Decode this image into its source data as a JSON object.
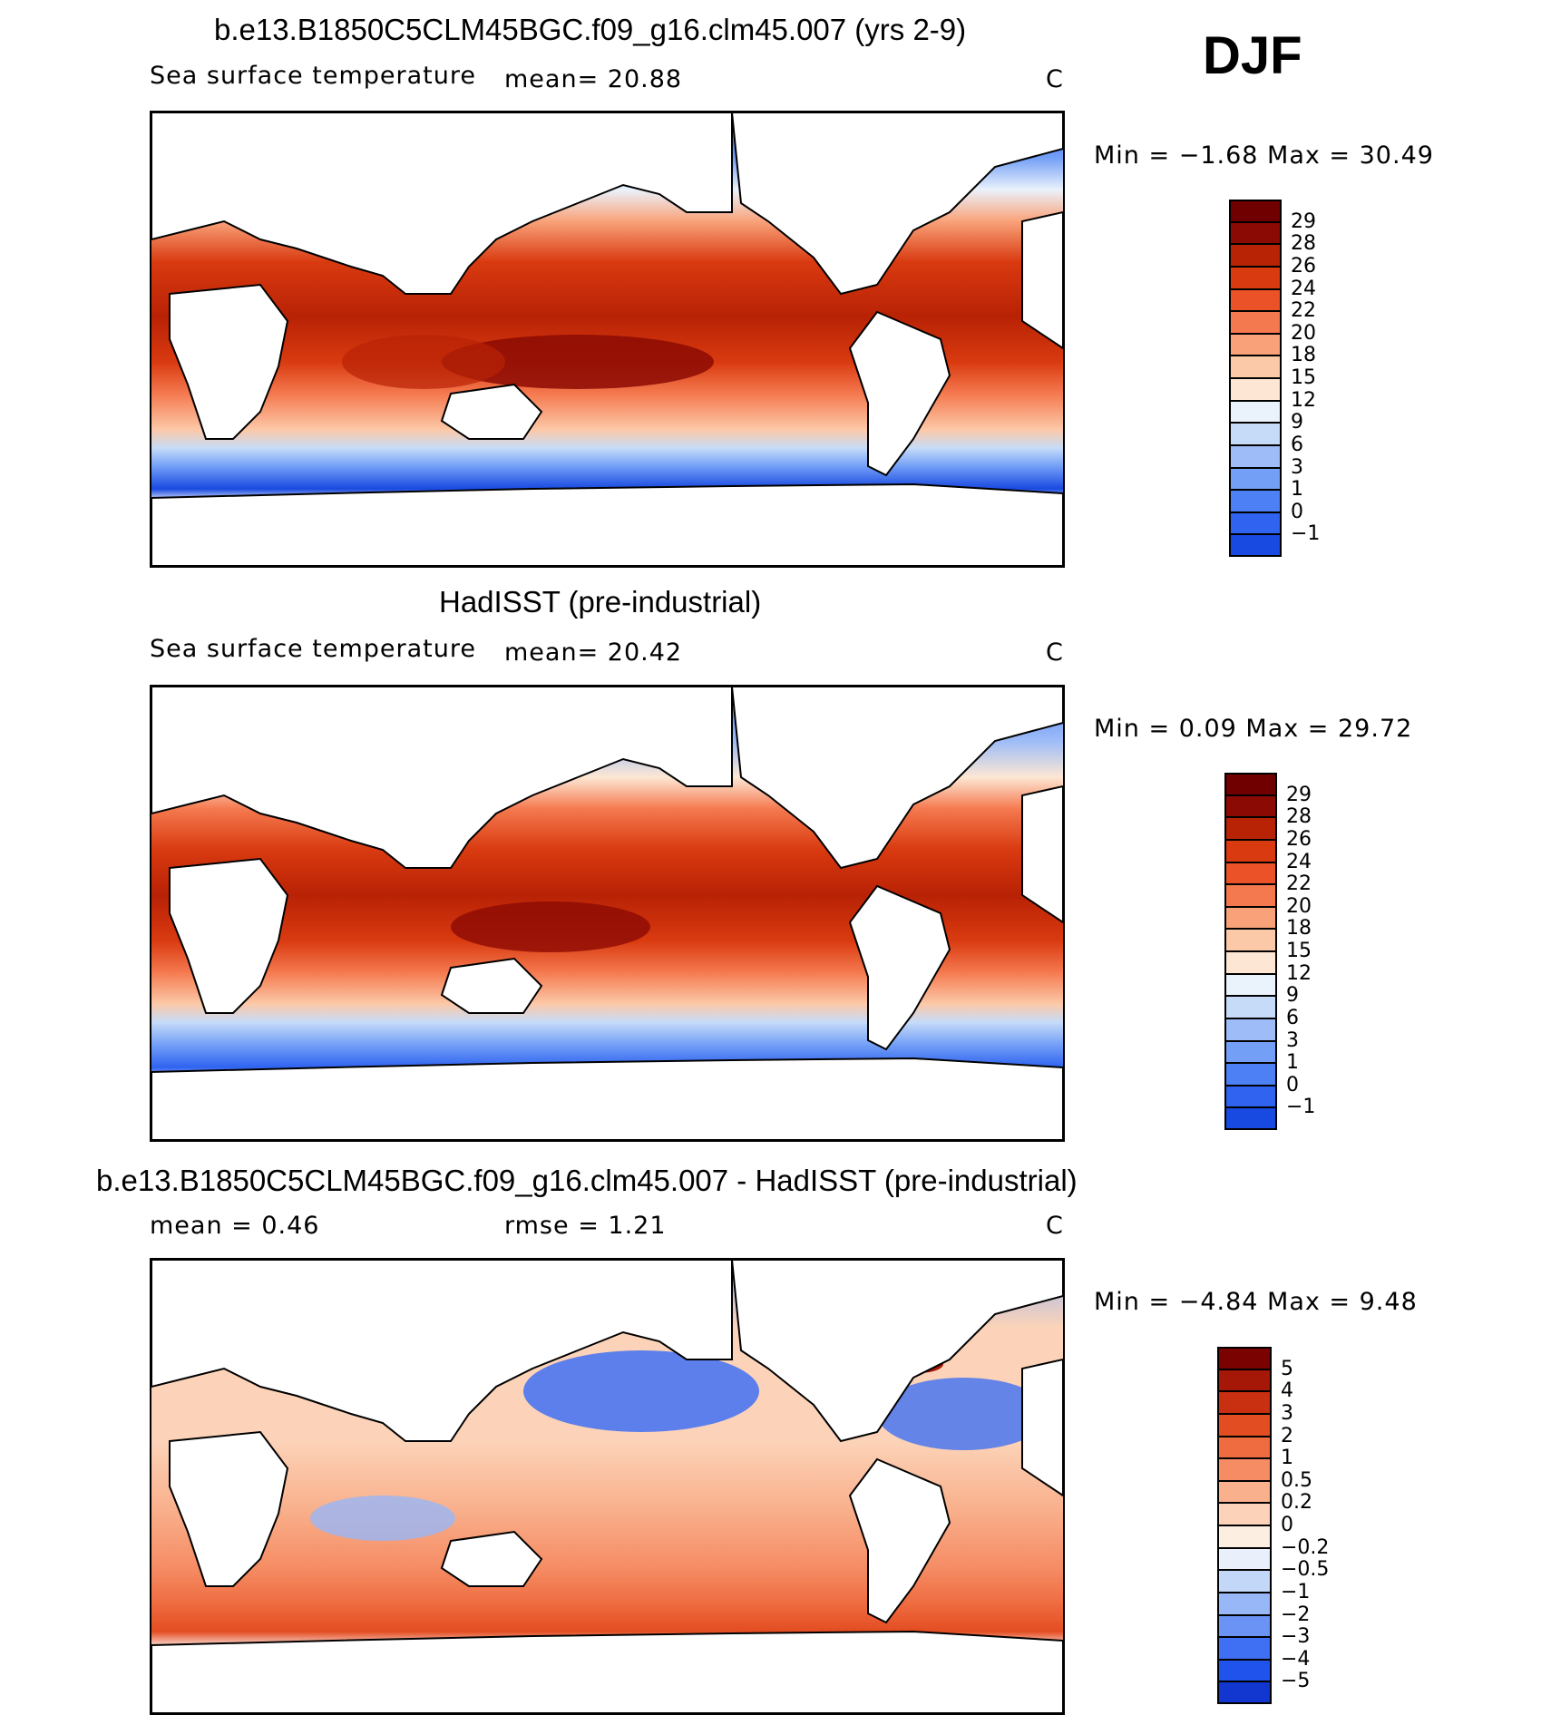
{
  "season": "DJF",
  "colors": {
    "abs_scale": [
      "#08006e",
      "#0d2bb0",
      "#1849e0",
      "#2f63f0",
      "#4d7ff5",
      "#739ff7",
      "#9dbcf8",
      "#c6dbf8",
      "#eaf2fb",
      "#fde7d4",
      "#fcc9a8",
      "#f9a27a",
      "#f5794f",
      "#ec5228",
      "#d93a10",
      "#b82205",
      "#8c0a04",
      "#700000"
    ],
    "diff_scale": [
      "#08006e",
      "#0a1a9e",
      "#1236d0",
      "#1f53ec",
      "#3f70f3",
      "#6a93f5",
      "#98b7f7",
      "#c3d7f8",
      "#e9f0fb",
      "#fdeee2",
      "#fcd3b8",
      "#f9b08c",
      "#f58c64",
      "#ef6b40",
      "#e34d22",
      "#c93012",
      "#a51706",
      "#7a0302"
    ],
    "land": "#ffffff",
    "coast": "#000000"
  },
  "panels": [
    {
      "title": "b.e13.B1850C5CLM45BGC.f09_g16.clm45.007 (yrs 2-9)",
      "left_label": "Sea surface temperature",
      "mid_label": "mean=   20.88",
      "units": "C",
      "minmax": "Min =   −1.68  Max =   30.49",
      "colorbar": [
        "29",
        "28",
        "26",
        "24",
        "22",
        "20",
        "18",
        "15",
        "12",
        "9",
        "6",
        "3",
        "1",
        "0",
        "−1"
      ]
    },
    {
      "title": "HadISST (pre-industrial)",
      "left_label": "Sea surface temperature",
      "mid_label": "mean=   20.42",
      "units": "C",
      "minmax": "Min =    0.09  Max =   29.72",
      "colorbar": [
        "29",
        "28",
        "26",
        "24",
        "22",
        "20",
        "18",
        "15",
        "12",
        "9",
        "6",
        "3",
        "1",
        "0",
        "−1"
      ]
    },
    {
      "title": "b.e13.B1850C5CLM45BGC.f09_g16.clm45.007 - HadISST (pre-industrial)",
      "left_label": "mean =     0.46",
      "mid_label": "rmse =     1.21",
      "units": "C",
      "minmax": "Min =   −4.84  Max =    9.48",
      "colorbar": [
        "5",
        "4",
        "3",
        "2",
        "1",
        "0.5",
        "0.2",
        "0",
        "−0.2",
        "−0.5",
        "−1",
        "−2",
        "−3",
        "−4",
        "−5"
      ]
    }
  ]
}
